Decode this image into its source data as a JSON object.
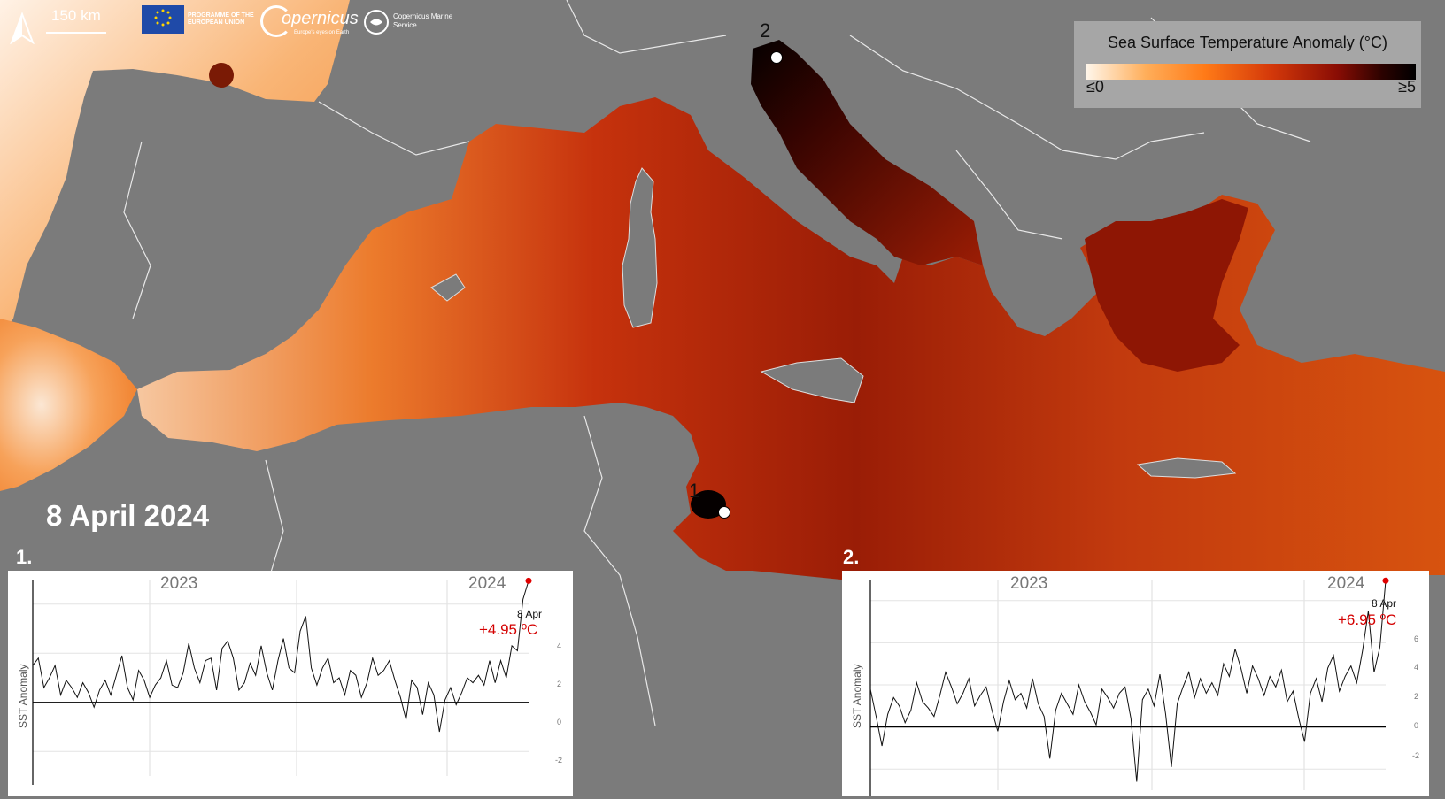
{
  "header": {
    "scale_text": "150 km",
    "eu_text": "PROGRAMME OF THE EUROPEAN UNION",
    "copernicus_text": "opernicus",
    "copernicus_sub": "Europe's eyes on Earth",
    "cms_text": "Copernicus Marine Service"
  },
  "legend": {
    "title": "Sea Surface Temperature Anomaly (°C)",
    "min_label": "≤0",
    "max_label": "≥5"
  },
  "date_label": "8 April 2024",
  "pins": [
    {
      "label": "1"
    },
    {
      "label": "2"
    }
  ],
  "panels": [
    {
      "number": "1.",
      "ylabel": "SST Anomaly",
      "years": [
        "2023",
        "2024"
      ],
      "end_date": "8 Apr",
      "end_value": "+4.95 ºC",
      "ticks": [
        "4",
        "2",
        "0",
        "-2"
      ]
    },
    {
      "number": "2.",
      "ylabel": "SST Anomaly",
      "years": [
        "2023",
        "2024"
      ],
      "end_date": "8 Apr",
      "end_value": "+6.95 ºC",
      "ticks": [
        "6",
        "4",
        "2",
        "0",
        "-2"
      ]
    }
  ],
  "chart_data": [
    {
      "type": "line",
      "ylabel": "SST Anomaly",
      "x_labels": [
        "2023",
        "2024"
      ],
      "ylim": [
        -3,
        5
      ],
      "series": [
        {
          "values": [
            1.5,
            1.8,
            0.6,
            1.0,
            1.5,
            0.3,
            0.9,
            0.6,
            0.2,
            0.8,
            0.4,
            -0.2,
            0.5,
            0.9,
            0.3,
            1.1,
            1.9,
            0.6,
            0.1,
            1.3,
            0.9,
            0.2,
            0.7,
            1.0,
            1.7,
            0.7,
            0.6,
            1.2,
            2.4,
            1.4,
            0.8,
            1.7,
            1.8,
            0.5,
            2.2,
            2.5,
            1.8,
            0.5,
            0.8,
            1.6,
            1.1,
            2.3,
            1.2,
            0.5,
            1.7,
            2.6,
            1.4,
            1.2,
            2.9,
            3.5,
            1.4,
            0.7,
            1.4,
            1.8,
            0.8,
            1.0,
            0.3,
            1.3,
            1.1,
            0.2,
            0.8,
            1.8,
            1.1,
            1.3,
            1.7,
            0.9,
            0.2,
            -0.7,
            0.9,
            0.6,
            -0.5,
            0.8,
            0.3,
            -1.2,
            0.1,
            0.6,
            -0.1,
            0.4,
            1.0,
            0.8,
            1.1,
            0.7,
            1.7,
            0.8,
            1.7,
            1.0,
            2.3,
            2.1,
            4.2,
            4.95
          ]
        }
      ]
    },
    {
      "type": "line",
      "ylabel": "SST Anomaly",
      "x_labels": [
        "2023",
        "2024"
      ],
      "ylim": [
        -3,
        7
      ],
      "series": [
        {
          "values": [
            1.8,
            0.5,
            -0.9,
            0.6,
            1.4,
            1.0,
            0.2,
            0.8,
            2.1,
            1.2,
            0.9,
            0.5,
            1.5,
            2.6,
            1.9,
            1.1,
            1.6,
            2.3,
            1.0,
            1.5,
            1.9,
            0.8,
            -0.2,
            1.2,
            2.2,
            1.3,
            1.6,
            0.9,
            2.3,
            1.1,
            0.5,
            -1.5,
            0.8,
            1.6,
            1.1,
            0.6,
            2.0,
            1.2,
            0.7,
            0.1,
            1.8,
            1.4,
            0.9,
            1.6,
            1.9,
            0.4,
            -2.6,
            1.3,
            1.8,
            1.0,
            2.5,
            0.6,
            -1.9,
            1.1,
            1.9,
            2.6,
            1.4,
            2.3,
            1.6,
            2.1,
            1.5,
            3.0,
            2.4,
            3.7,
            2.8,
            1.6,
            2.9,
            2.3,
            1.5,
            2.4,
            1.9,
            2.7,
            1.2,
            1.7,
            0.4,
            -0.7,
            1.6,
            2.3,
            1.2,
            2.8,
            3.4,
            1.7,
            2.4,
            2.9,
            2.1,
            3.6,
            5.5,
            2.6,
            3.8,
            6.95
          ]
        }
      ]
    }
  ]
}
